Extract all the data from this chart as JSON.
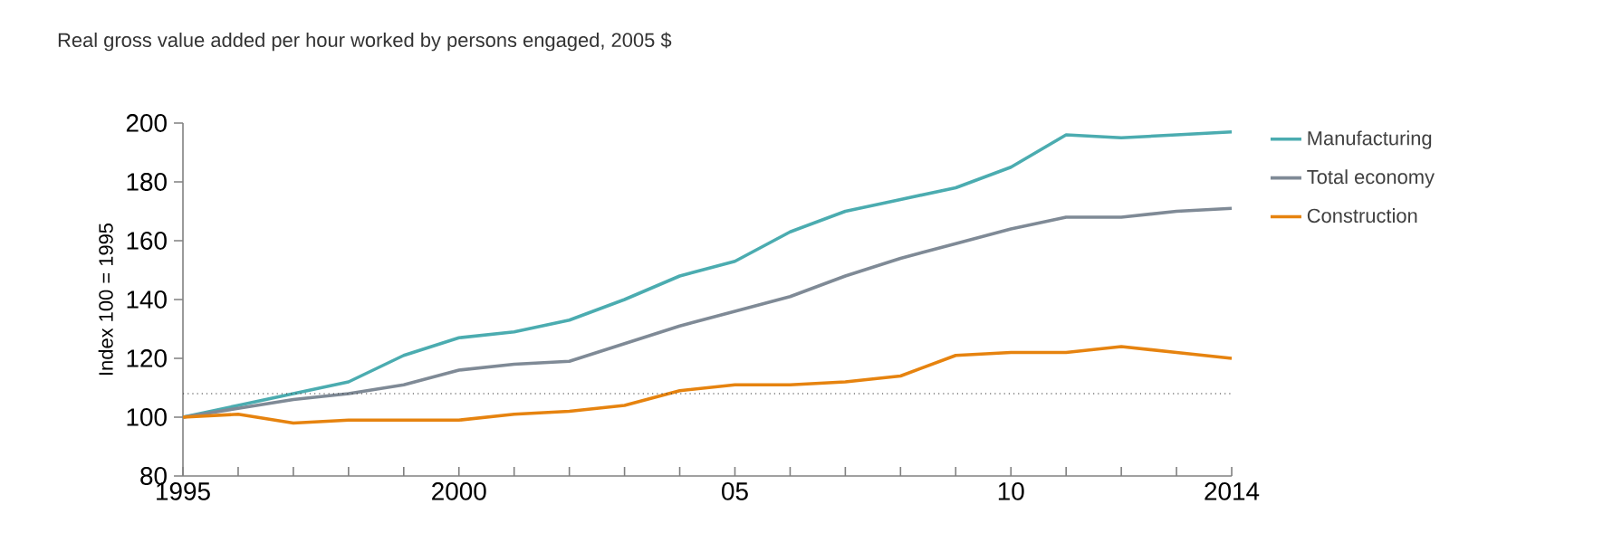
{
  "chart_data": {
    "type": "line",
    "title": "Real gross value added per hour worked by persons engaged, 2005 $",
    "ylabel": "Index 100 = 1995",
    "x": [
      1995,
      1996,
      1997,
      1998,
      1999,
      2000,
      2001,
      2002,
      2003,
      2004,
      2005,
      2006,
      2007,
      2008,
      2009,
      2010,
      2011,
      2012,
      2013,
      2014
    ],
    "series": [
      {
        "name": "Manufacturing",
        "color": "#4bacb0",
        "values": [
          100,
          104,
          108,
          112,
          121,
          127,
          129,
          133,
          140,
          148,
          153,
          163,
          170,
          174,
          178,
          185,
          196,
          195,
          196,
          197
        ]
      },
      {
        "name": "Total economy",
        "color": "#7f8a96",
        "values": [
          100,
          103,
          106,
          108,
          111,
          116,
          118,
          119,
          125,
          131,
          136,
          141,
          148,
          154,
          159,
          164,
          168,
          168,
          170,
          171
        ]
      },
      {
        "name": "Construction",
        "color": "#e6830f",
        "values": [
          100,
          101,
          98,
          99,
          99,
          99,
          101,
          102,
          104,
          109,
          111,
          111,
          112,
          114,
          121,
          122,
          122,
          124,
          122,
          120
        ]
      }
    ],
    "xlim": [
      1995,
      2014
    ],
    "ylim": [
      80,
      200
    ],
    "yticks": [
      80,
      100,
      120,
      140,
      160,
      180,
      200
    ],
    "xticks": [
      {
        "value": 1995,
        "label": "1995"
      },
      {
        "value": 1996,
        "label": null
      },
      {
        "value": 1997,
        "label": null
      },
      {
        "value": 1998,
        "label": null
      },
      {
        "value": 1999,
        "label": null
      },
      {
        "value": 2000,
        "label": "2000"
      },
      {
        "value": 2001,
        "label": null
      },
      {
        "value": 2002,
        "label": null
      },
      {
        "value": 2003,
        "label": null
      },
      {
        "value": 2004,
        "label": null
      },
      {
        "value": 2005,
        "label": "05"
      },
      {
        "value": 2006,
        "label": null
      },
      {
        "value": 2007,
        "label": null
      },
      {
        "value": 2008,
        "label": null
      },
      {
        "value": 2009,
        "label": null
      },
      {
        "value": 2010,
        "label": "10"
      },
      {
        "value": 2011,
        "label": null
      },
      {
        "value": 2012,
        "label": null
      },
      {
        "value": 2013,
        "label": null
      },
      {
        "value": 2014,
        "label": "2014"
      }
    ],
    "ref_lines": [
      {
        "axis": "y",
        "value": 108,
        "color": "#333333",
        "line_style": "dotted"
      }
    ],
    "legend": "right",
    "grid": false,
    "marker": "none",
    "line_style": "solid"
  }
}
